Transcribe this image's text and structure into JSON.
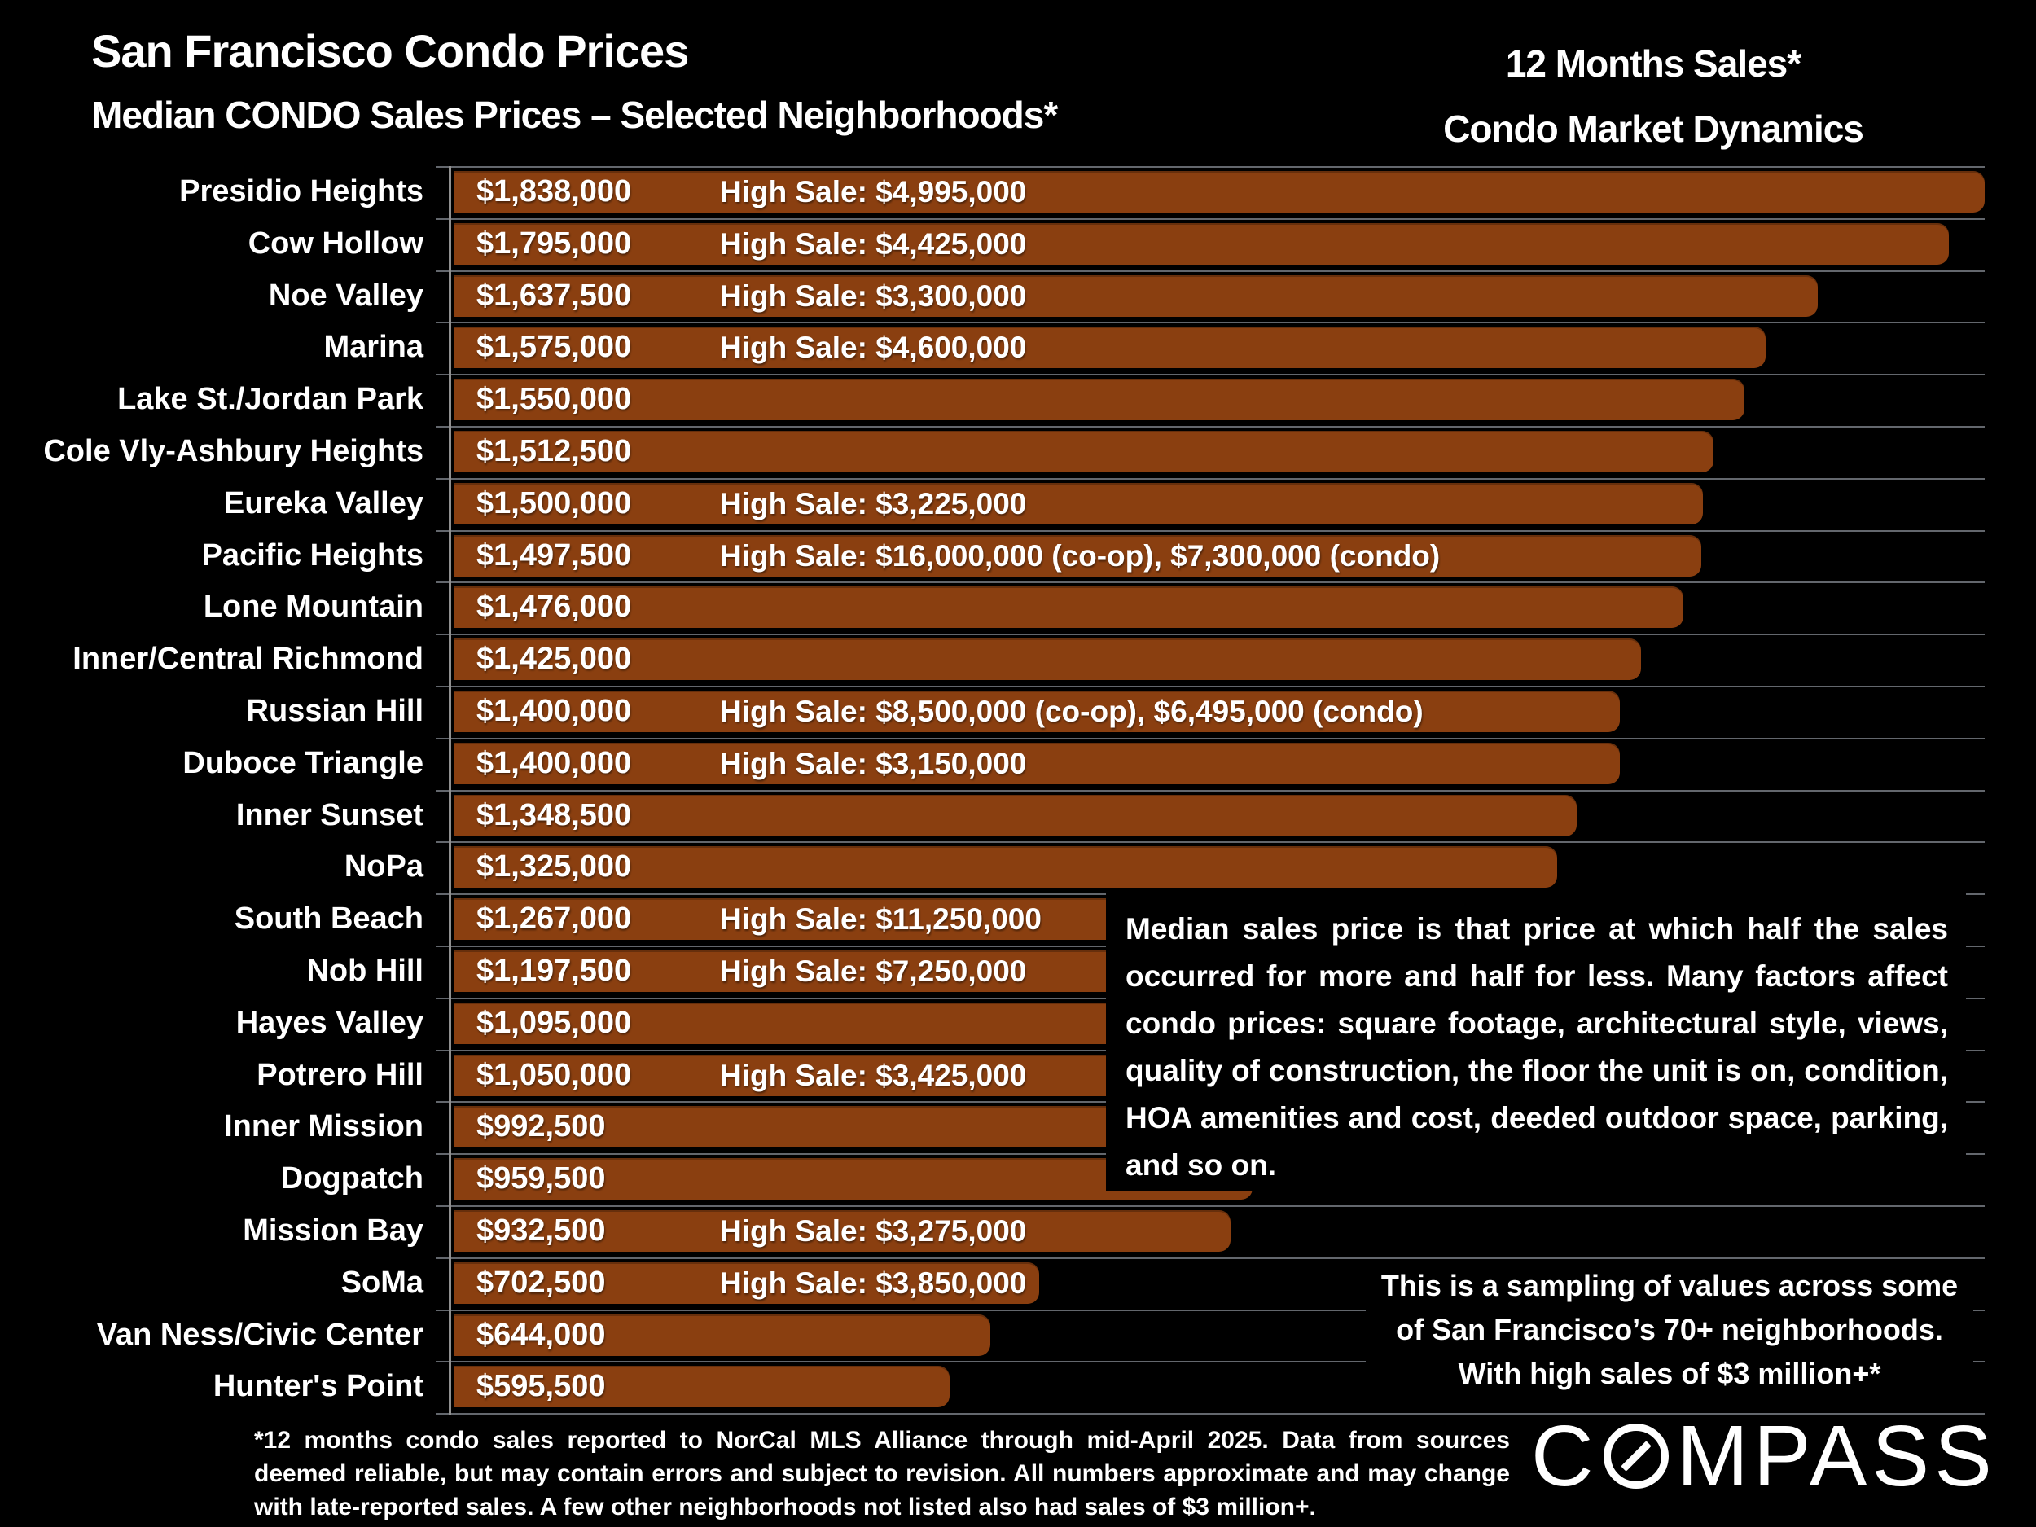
{
  "header": {
    "title": "San Francisco Condo Prices",
    "subtitle": "Median CONDO Sales Prices – Selected Neighborhoods*",
    "right_title_line1": "12 Months Sales*",
    "right_title_line2": "Condo Market Dynamics"
  },
  "chart_data": {
    "type": "bar",
    "orientation": "horizontal",
    "title": "Median CONDO Sales Prices – Selected Neighborhoods",
    "value_axis_max": 1838000,
    "grid": "row-separators",
    "bar_color": "#8A3F10",
    "separator_color": "#63676d",
    "axis_color": "#909090",
    "categories": [
      "Presidio Heights",
      "Cow Hollow",
      "Noe Valley",
      "Marina",
      "Lake St./Jordan Park",
      "Cole Vly-Ashbury Heights",
      "Eureka Valley",
      "Pacific Heights",
      "Lone Mountain",
      "Inner/Central Richmond",
      "Russian Hill",
      "Duboce Triangle",
      "Inner Sunset",
      "NoPa",
      "South Beach",
      "Nob Hill",
      "Hayes Valley",
      "Potrero Hill",
      "Inner Mission",
      "Dogpatch",
      "Mission Bay",
      "SoMa",
      "Van Ness/Civic Center",
      "Hunter's Point"
    ],
    "values": [
      1838000,
      1795000,
      1637500,
      1575000,
      1550000,
      1512500,
      1500000,
      1497500,
      1476000,
      1425000,
      1400000,
      1400000,
      1348500,
      1325000,
      1267000,
      1197500,
      1095000,
      1050000,
      992500,
      959500,
      932500,
      702500,
      644000,
      595500
    ],
    "value_labels": [
      "$1,838,000",
      "$1,795,000",
      "$1,637,500",
      "$1,575,000",
      "$1,550,000",
      "$1,512,500",
      "$1,500,000",
      "$1,497,500",
      "$1,476,000",
      "$1,425,000",
      "$1,400,000",
      "$1,400,000",
      "$1,348,500",
      "$1,325,000",
      "$1,267,000",
      "$1,197,500",
      "$1,095,000",
      "$1,050,000",
      "$992,500",
      "$959,500",
      "$932,500",
      "$702,500",
      "$644,000",
      "$595,500"
    ],
    "high_sale_labels": [
      "High Sale:  $4,995,000",
      "High Sale:  $4,425,000",
      "High Sale:  $3,300,000",
      "High Sale:  $4,600,000",
      "",
      "",
      "High Sale:  $3,225,000",
      "High Sale:  $16,000,000 (co-op), $7,300,000 (condo)",
      "",
      "",
      "High Sale:  $8,500,000 (co-op), $6,495,000 (condo)",
      "High Sale:  $3,150,000",
      "",
      "",
      "High Sale:  $11,250,000",
      "High Sale:  $7,250,000",
      "",
      "High Sale:  $3,425,000",
      "",
      "",
      "High Sale:  $3,275,000",
      "High Sale:  $3,850,000",
      "",
      ""
    ]
  },
  "annotations": {
    "median_explainer": "Median sales price is that price at which half the sales occurred for more and half for less. Many factors affect condo prices: square footage, architectural style, views, quality of construction, the floor the unit is on, condition, HOA amenities and cost, deeded outdoor space, parking, and so on.",
    "sampling_lines": [
      "This is a sampling of values across some",
      "of San Francisco’s 70+ neighborhoods.",
      "With high sales of $3 million+*"
    ]
  },
  "footnote": "*12 months condo sales reported to NorCal MLS Alliance through mid-April 2025. Data from sources deemed reliable, but may contain errors and subject to revision. All numbers approximate and may change with late-reported sales. A few other neighborhoods not listed also had sales of $3 million+.",
  "logo": {
    "prefix": "C",
    "suffix": "MPASS"
  }
}
